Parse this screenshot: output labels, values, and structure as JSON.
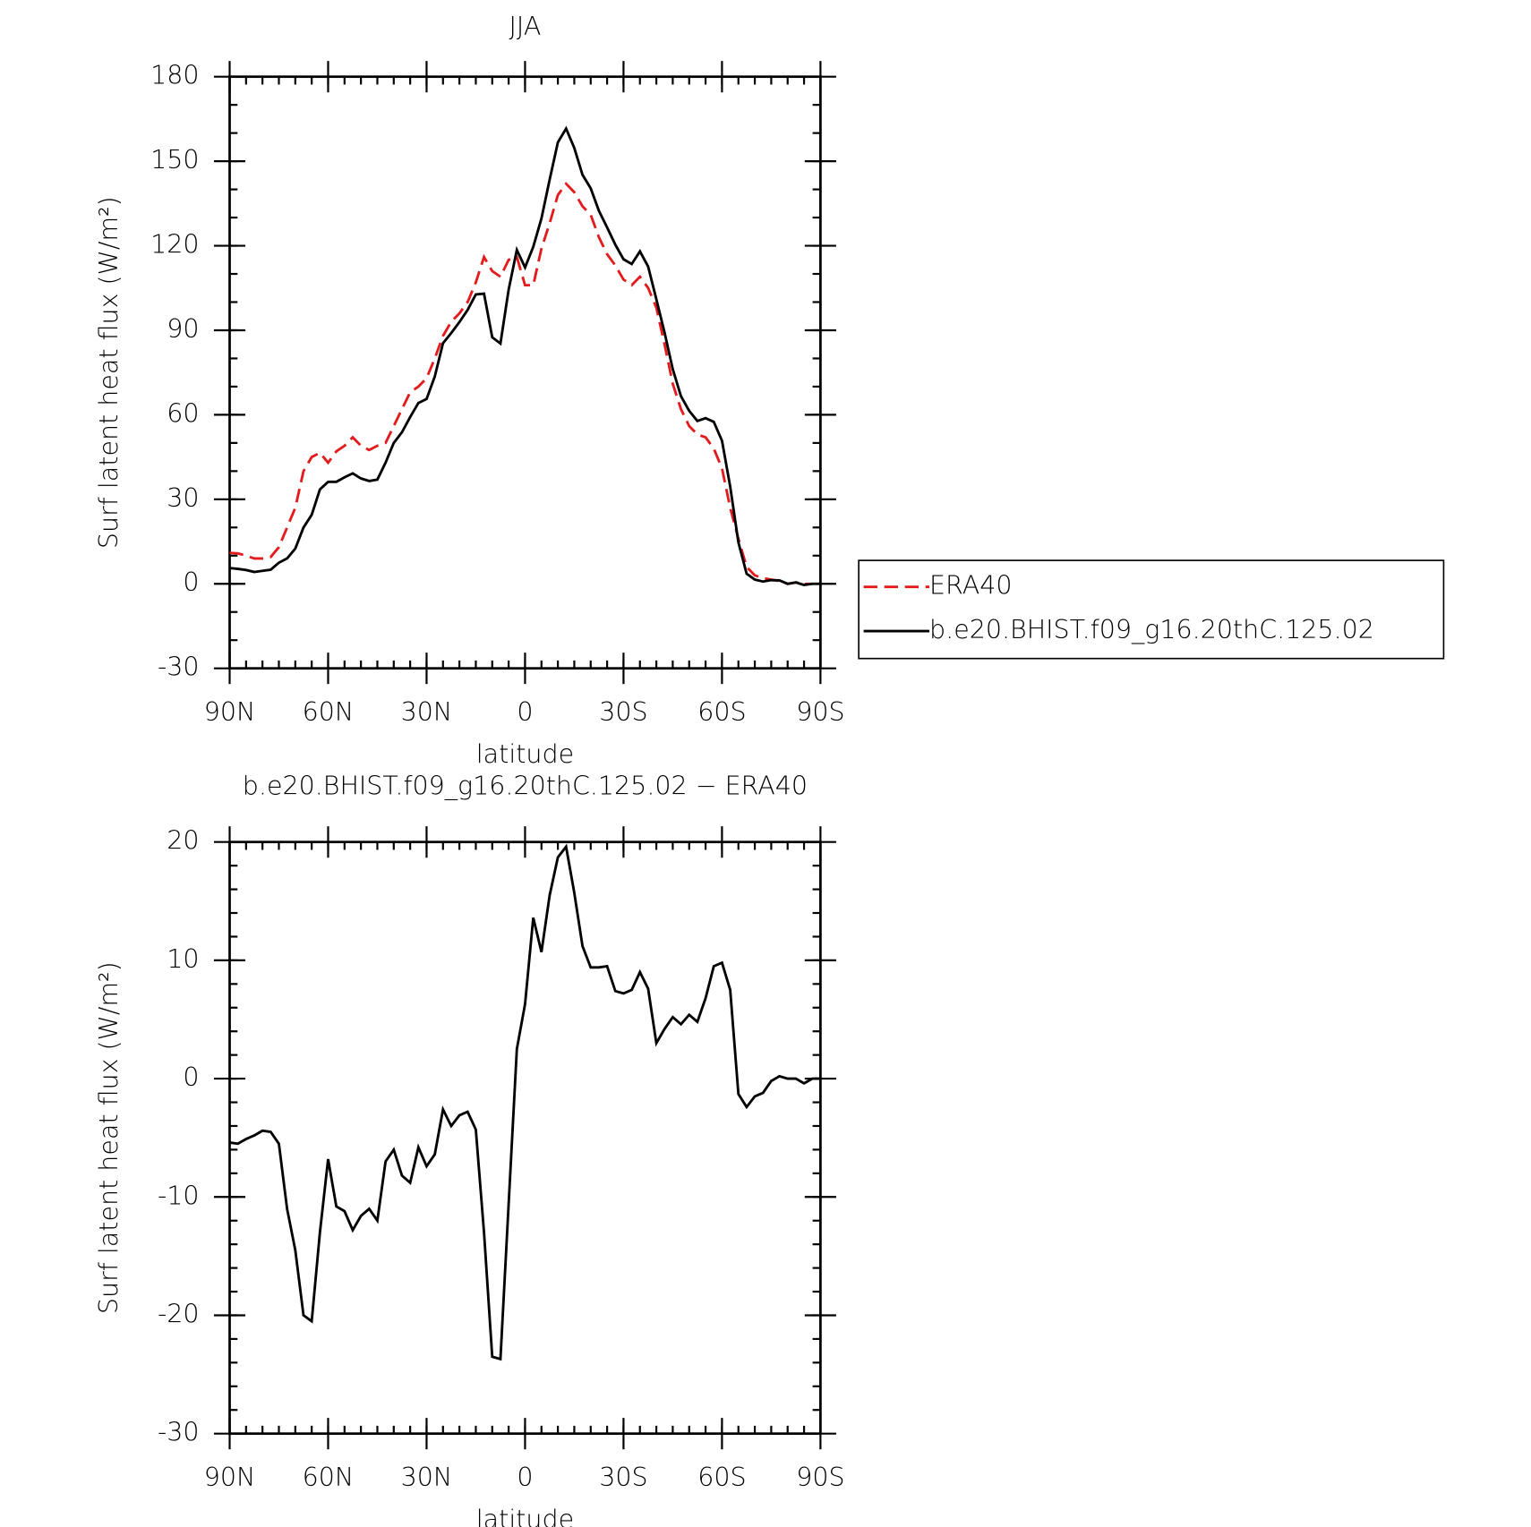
{
  "chart_data": [
    {
      "type": "line",
      "title": "JJA",
      "xlabel": "latitude",
      "ylabel": "Surf latent heat flux (W/m²)",
      "x": [
        90,
        87.5,
        85,
        82.5,
        80,
        77.5,
        75,
        72.5,
        70,
        67.5,
        65,
        62.5,
        60,
        57.5,
        55,
        52.5,
        50,
        47.5,
        45,
        42.5,
        40,
        37.5,
        35,
        32.5,
        30,
        27.5,
        25,
        22.5,
        20,
        17.5,
        15,
        12.5,
        10,
        7.5,
        5,
        2.5,
        0,
        -2.5,
        -5,
        -7.5,
        -10,
        -12.5,
        -15,
        -17.5,
        -20,
        -22.5,
        -25,
        -27.5,
        -30,
        -32.5,
        -35,
        -37.5,
        -40,
        -42.5,
        -45,
        -47.5,
        -50,
        -52.5,
        -55,
        -57.5,
        -60,
        -62.5,
        -65,
        -67.5,
        -70,
        -72.5,
        -75,
        -77.5,
        -80,
        -82.5,
        -85,
        -87.5,
        -90
      ],
      "series": [
        {
          "name": "ERA40",
          "color": "#e41a1c",
          "line_style": "dashed",
          "values": [
            11,
            10.8,
            10,
            9,
            9,
            9.5,
            13,
            20,
            27,
            40,
            45,
            46.5,
            43,
            47,
            49,
            52,
            49,
            47.5,
            49,
            50,
            56,
            62,
            68,
            70,
            73,
            80,
            88,
            93,
            96,
            100,
            107,
            116,
            111,
            109,
            115,
            116,
            106,
            106,
            119,
            128,
            138,
            142,
            139,
            134,
            131,
            123,
            117,
            113,
            108,
            106,
            109,
            105,
            98,
            85,
            71,
            62,
            56,
            53,
            52,
            48,
            41,
            27,
            16,
            6,
            3,
            2,
            1.5,
            1,
            0,
            0.5,
            0,
            0,
            0
          ]
        },
        {
          "name": "b.e20.BHIST.f09_g16.20thC.125.02",
          "color": "#000000",
          "line_style": "solid",
          "values": [
            5.6,
            5.3,
            4.9,
            4.2,
            4.6,
            5,
            7.5,
            9,
            12.5,
            20,
            24.5,
            33.5,
            36.2,
            36.2,
            37.8,
            39.2,
            37.4,
            36.5,
            37,
            43,
            50,
            53.8,
            59.2,
            64.2,
            65.6,
            73.6,
            85.4,
            89,
            92.9,
            97.2,
            102.7,
            103,
            87.5,
            85.3,
            104.4,
            118.5,
            112.3,
            119.6,
            129.7,
            143.5,
            156.7,
            161.6,
            154.7,
            145.2,
            140.4,
            132.4,
            126.5,
            120.4,
            115.2,
            113.5,
            118,
            112.6,
            101,
            89.2,
            76.2,
            66.6,
            61.4,
            57.8,
            58.8,
            57.5,
            50.8,
            34.5,
            14.7,
            3.6,
            1.5,
            0.8,
            1.3,
            1.2,
            0,
            0.5,
            -0.4,
            0,
            0
          ]
        }
      ],
      "xlim": [
        90,
        -90
      ],
      "xticks": [
        {
          "value": 90,
          "label": "90N"
        },
        {
          "value": 60,
          "label": "60N"
        },
        {
          "value": 30,
          "label": "30N"
        },
        0,
        {
          "value": -30,
          "label": "30S"
        },
        {
          "value": -60,
          "label": "60S"
        },
        {
          "value": -90,
          "label": "90S"
        }
      ],
      "ylim": [
        -30,
        180
      ],
      "yticks": [
        -30,
        0,
        30,
        60,
        90,
        120,
        150,
        180
      ],
      "minor_xtick_step": 5,
      "minor_ytick_step": 10,
      "legend": "right"
    },
    {
      "type": "line",
      "title": "b.e20.BHIST.f09_g16.20thC.125.02 − ERA40",
      "xlabel": "latitude",
      "ylabel": "Surf latent heat flux (W/m²)",
      "x": [
        90,
        87.5,
        85,
        82.5,
        80,
        77.5,
        75,
        72.5,
        70,
        67.5,
        65,
        62.5,
        60,
        57.5,
        55,
        52.5,
        50,
        47.5,
        45,
        42.5,
        40,
        37.5,
        35,
        32.5,
        30,
        27.5,
        25,
        22.5,
        20,
        17.5,
        15,
        12.5,
        10,
        7.5,
        5,
        2.5,
        0,
        -2.5,
        -5,
        -7.5,
        -10,
        -12.5,
        -15,
        -17.5,
        -20,
        -22.5,
        -25,
        -27.5,
        -30,
        -32.5,
        -35,
        -37.5,
        -40,
        -42.5,
        -45,
        -47.5,
        -50,
        -52.5,
        -55,
        -57.5,
        -60,
        -62.5,
        -65,
        -67.5,
        -70,
        -72.5,
        -75,
        -77.5,
        -80,
        -82.5,
        -85,
        -87.5,
        -90
      ],
      "values": [
        -5.4,
        -5.5,
        -5.1,
        -4.8,
        -4.4,
        -4.5,
        -5.5,
        -11,
        -14.5,
        -20,
        -20.5,
        -13,
        -6.8,
        -10.8,
        -11.2,
        -12.8,
        -11.6,
        -11,
        -12,
        -7,
        -6,
        -8.2,
        -8.8,
        -5.8,
        -7.4,
        -6.4,
        -2.6,
        -4,
        -3.1,
        -2.8,
        -4.3,
        -13,
        -23.5,
        -23.7,
        -10.6,
        2.5,
        6.3,
        13.6,
        10.7,
        15.5,
        18.7,
        19.6,
        15.7,
        11.2,
        9.4,
        9.4,
        9.5,
        7.4,
        7.2,
        7.5,
        9.0,
        7.6,
        3.0,
        4.2,
        5.2,
        4.6,
        5.4,
        4.8,
        6.8,
        9.5,
        9.8,
        7.5,
        -1.3,
        -2.4,
        -1.5,
        -1.2,
        -0.2,
        0.2,
        0,
        0,
        -0.4,
        0,
        0
      ],
      "color": "#000000",
      "xlim": [
        90,
        -90
      ],
      "xticks": [
        {
          "value": 90,
          "label": "90N"
        },
        {
          "value": 60,
          "label": "60N"
        },
        {
          "value": 30,
          "label": "30N"
        },
        0,
        {
          "value": -30,
          "label": "30S"
        },
        {
          "value": -60,
          "label": "60S"
        },
        {
          "value": -90,
          "label": "90S"
        }
      ],
      "ylim": [
        -30,
        20
      ],
      "yticks": [
        -30,
        -20,
        -10,
        0,
        10,
        20
      ],
      "minor_xtick_step": 5,
      "minor_ytick_step": 2
    }
  ]
}
